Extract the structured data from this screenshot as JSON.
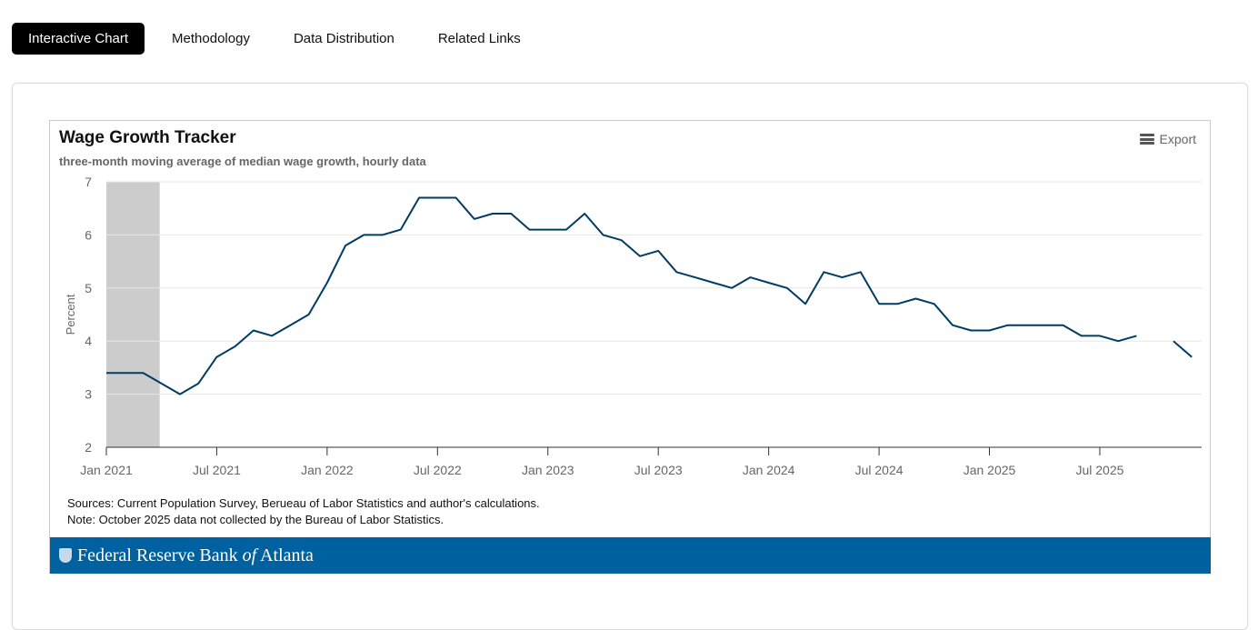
{
  "tabs": [
    {
      "label": "Interactive Chart",
      "active": true
    },
    {
      "label": "Methodology"
    },
    {
      "label": "Data Distribution"
    },
    {
      "label": "Related Links"
    }
  ],
  "export_label": "Export",
  "notes": {
    "sources": "Sources: Current Population Survey, Berueau of Labor Statistics and author's calculations.",
    "note": "Note: October 2025 data not collected by the Bureau of Labor Statistics."
  },
  "banner": {
    "pre": "Federal Reserve Bank ",
    "of": "of",
    "post": " Atlanta"
  },
  "colors": {
    "line": "#003c64",
    "shade": "#cccccc",
    "banner": "#0061a0"
  },
  "chart_data": {
    "type": "line",
    "title": "Wage Growth Tracker",
    "subtitle": "three-month moving average of median wage growth, hourly data",
    "xlabel": "",
    "ylabel": "Percent",
    "ylim": [
      2,
      7
    ],
    "yticks": [
      2,
      3,
      4,
      5,
      6,
      7
    ],
    "start": "Jan 2021",
    "xticks": [
      {
        "label": "Jan 2021",
        "index": 0
      },
      {
        "label": "Jul 2021",
        "index": 6
      },
      {
        "label": "Jan 2022",
        "index": 12
      },
      {
        "label": "Jul 2022",
        "index": 18
      },
      {
        "label": "Jan 2023",
        "index": 24
      },
      {
        "label": "Jul 2023",
        "index": 30
      },
      {
        "label": "Jan 2024",
        "index": 36
      },
      {
        "label": "Jul 2024",
        "index": 42
      },
      {
        "label": "Jan 2025",
        "index": 48
      },
      {
        "label": "Jul 2025",
        "index": 54
      }
    ],
    "shaded_range": [
      0,
      2.9
    ],
    "grid": true,
    "series": [
      {
        "name": "Wage growth",
        "values": [
          3.4,
          3.4,
          3.4,
          3.2,
          3.0,
          3.2,
          3.7,
          3.9,
          4.2,
          4.1,
          4.3,
          4.5,
          5.1,
          5.8,
          6.0,
          6.0,
          6.1,
          6.7,
          6.7,
          6.7,
          6.3,
          6.4,
          6.4,
          6.1,
          6.1,
          6.1,
          6.4,
          6.0,
          5.9,
          5.6,
          5.7,
          5.3,
          5.2,
          5.1,
          5.0,
          5.2,
          5.1,
          5.0,
          4.7,
          5.3,
          5.2,
          5.3,
          4.7,
          4.7,
          4.8,
          4.7,
          4.3,
          4.2,
          4.2,
          4.3,
          4.3,
          4.3,
          4.3,
          4.1,
          4.1,
          4.0,
          4.1,
          null,
          4.0,
          3.7
        ]
      }
    ]
  }
}
